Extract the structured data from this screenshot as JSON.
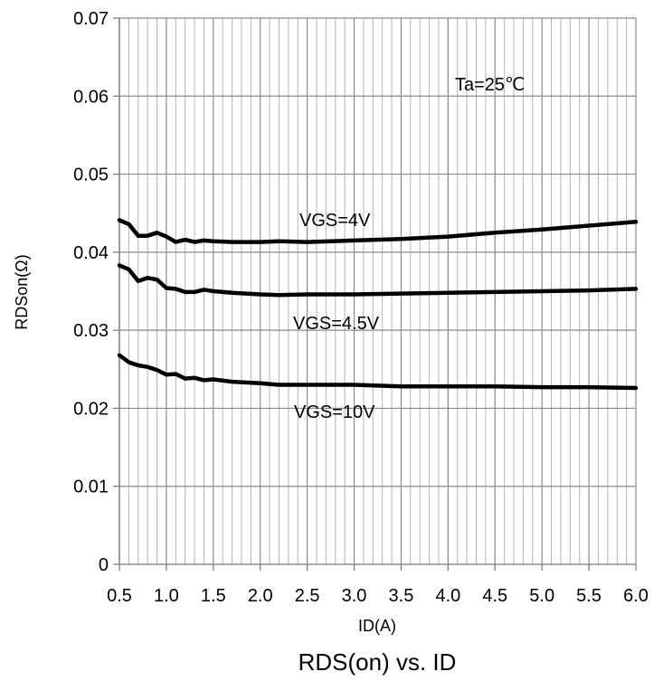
{
  "chart_data": {
    "type": "line",
    "title": "RDS(on) vs. ID",
    "xlabel": "ID(A)",
    "ylabel": "RDSon(Ω)",
    "xlim": [
      0.5,
      6.0
    ],
    "ylim": [
      0,
      0.07
    ],
    "x_ticks": [
      "0.5",
      "1.0",
      "1.5",
      "2.0",
      "2.5",
      "3.0",
      "3.5",
      "4.0",
      "4.5",
      "5.0",
      "5.5",
      "6.0"
    ],
    "y_ticks": [
      "0",
      "0.01",
      "0.02",
      "0.03",
      "0.04",
      "0.05",
      "0.06",
      "0.07"
    ],
    "grid": true,
    "annotations": [
      {
        "text": "Ta=25℃"
      },
      {
        "text": "VGS=4V"
      },
      {
        "text": "VGS=4.5V"
      },
      {
        "text": "VGS=10V"
      }
    ],
    "series": [
      {
        "name": "VGS=4V",
        "x": [
          0.5,
          0.6,
          0.7,
          0.8,
          0.9,
          1.0,
          1.1,
          1.2,
          1.3,
          1.4,
          1.5,
          1.7,
          2.0,
          2.2,
          2.5,
          3.0,
          3.5,
          4.0,
          4.5,
          5.0,
          5.5,
          6.0
        ],
        "y": [
          0.0441,
          0.0436,
          0.0421,
          0.0421,
          0.0425,
          0.042,
          0.0413,
          0.0416,
          0.0413,
          0.0415,
          0.0414,
          0.0413,
          0.0413,
          0.0414,
          0.0413,
          0.0415,
          0.0417,
          0.042,
          0.0425,
          0.0429,
          0.0434,
          0.0439
        ]
      },
      {
        "name": "VGS=4.5V",
        "x": [
          0.5,
          0.6,
          0.7,
          0.8,
          0.9,
          1.0,
          1.1,
          1.2,
          1.3,
          1.4,
          1.5,
          1.7,
          2.0,
          2.2,
          2.5,
          3.0,
          3.5,
          4.0,
          4.5,
          5.0,
          5.5,
          6.0
        ],
        "y": [
          0.0383,
          0.0378,
          0.0363,
          0.0367,
          0.0365,
          0.0354,
          0.0353,
          0.0349,
          0.0349,
          0.0352,
          0.035,
          0.0348,
          0.0346,
          0.0345,
          0.0346,
          0.0346,
          0.0347,
          0.0348,
          0.0349,
          0.035,
          0.0351,
          0.0353
        ]
      },
      {
        "name": "VGS=10V",
        "x": [
          0.5,
          0.6,
          0.7,
          0.8,
          0.9,
          1.0,
          1.1,
          1.2,
          1.3,
          1.4,
          1.5,
          1.7,
          2.0,
          2.2,
          2.5,
          3.0,
          3.5,
          4.0,
          4.5,
          5.0,
          5.5,
          6.0
        ],
        "y": [
          0.0268,
          0.0259,
          0.0255,
          0.0253,
          0.0249,
          0.0243,
          0.0244,
          0.0238,
          0.0239,
          0.0236,
          0.0237,
          0.0234,
          0.0232,
          0.023,
          0.023,
          0.023,
          0.0228,
          0.0228,
          0.0228,
          0.0227,
          0.0227,
          0.0226
        ]
      }
    ]
  }
}
